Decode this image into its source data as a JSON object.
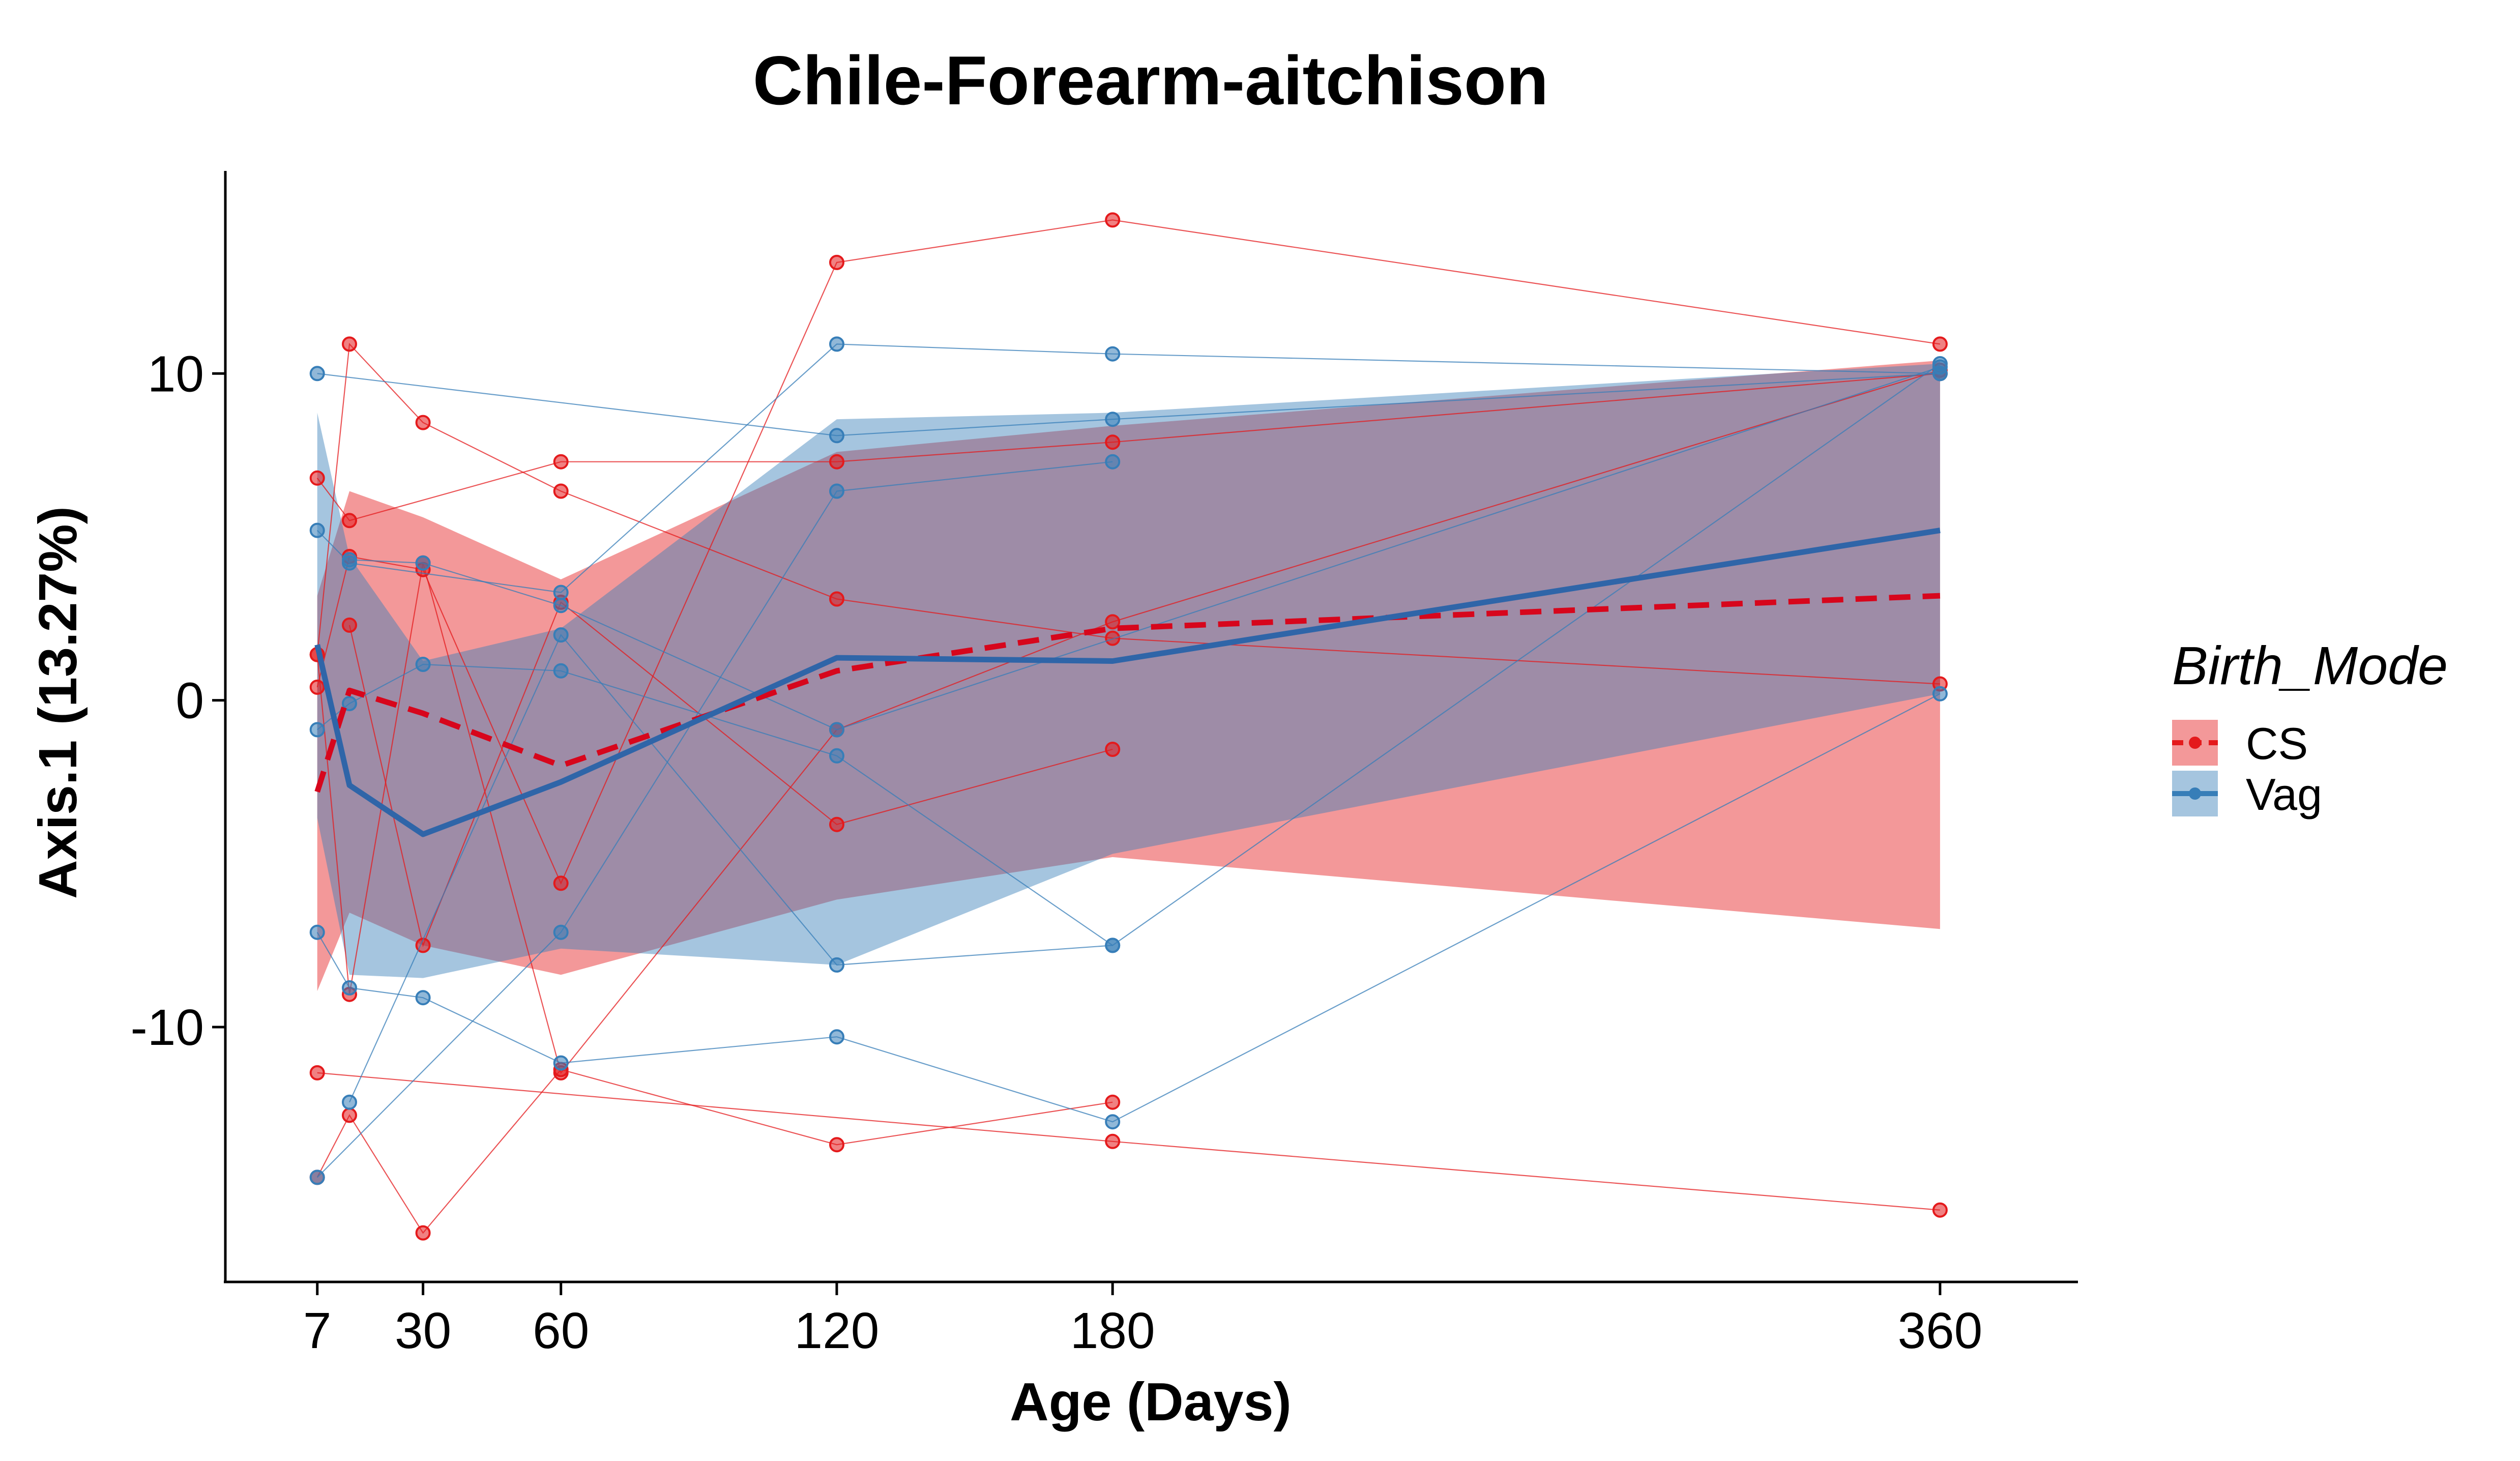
{
  "chart_data": {
    "type": "line",
    "title": "Chile-Forearm-aitchison",
    "xlabel": "Age (Days)",
    "ylabel": "Axis.1 (13.27%)",
    "xlim": [
      -13,
      390
    ],
    "ylim": [
      -17.8,
      16.2
    ],
    "x_ticks": [
      7,
      30,
      60,
      120,
      180,
      360
    ],
    "y_ticks": [
      -10,
      0,
      10
    ],
    "grid": false,
    "legend": {
      "title": "Birth_Mode",
      "position": "right",
      "entries": [
        {
          "label": "CS",
          "color": "#e41a1c"
        },
        {
          "label": "Vag",
          "color": "#377eb8"
        }
      ]
    },
    "series": [
      {
        "name": "CS",
        "color": "#e41a1c",
        "line_style": "dashed",
        "mean": [
          [
            7,
            -2.8
          ],
          [
            14,
            0.3
          ],
          [
            30,
            -0.4
          ],
          [
            60,
            -2.0
          ],
          [
            120,
            0.9
          ],
          [
            180,
            2.2
          ],
          [
            360,
            3.2
          ]
        ],
        "band_lower": [
          [
            7,
            -8.9
          ],
          [
            14,
            -6.5
          ],
          [
            30,
            -7.5
          ],
          [
            60,
            -8.4
          ],
          [
            120,
            -6.1
          ],
          [
            180,
            -4.8
          ],
          [
            360,
            -7.0
          ]
        ],
        "band_upper": [
          [
            7,
            3.2
          ],
          [
            14,
            6.4
          ],
          [
            30,
            5.6
          ],
          [
            60,
            3.7
          ],
          [
            120,
            7.6
          ],
          [
            180,
            8.4
          ],
          [
            360,
            10.4
          ]
        ],
        "subjects": [
          [
            [
              7,
              6.8
            ],
            [
              14,
              5.5
            ],
            [
              60,
              7.3
            ],
            [
              120,
              7.3
            ],
            [
              180,
              7.9
            ],
            [
              360,
              10.0
            ]
          ],
          [
            [
              7,
              1.4
            ],
            [
              14,
              10.9
            ],
            [
              30,
              8.5
            ],
            [
              60,
              6.4
            ],
            [
              120,
              3.1
            ],
            [
              180,
              1.9
            ],
            [
              360,
              0.5
            ]
          ],
          [
            [
              7,
              0.4
            ],
            [
              14,
              4.4
            ],
            [
              30,
              4.0
            ],
            [
              60,
              -5.6
            ],
            [
              120,
              13.4
            ],
            [
              180,
              14.7
            ],
            [
              360,
              10.9
            ]
          ],
          [
            [
              7,
              -11.4
            ],
            [
              180,
              -13.5
            ],
            [
              360,
              -15.6
            ]
          ],
          [
            [
              7,
              -14.6
            ],
            [
              14,
              -12.7
            ],
            [
              30,
              -16.3
            ],
            [
              60,
              -11.3
            ],
            [
              120,
              -13.6
            ],
            [
              180,
              -12.3
            ]
          ],
          [
            [
              7,
              1.4
            ],
            [
              14,
              -9.0
            ],
            [
              30,
              4.2
            ],
            [
              60,
              -11.4
            ],
            [
              120,
              -0.9
            ],
            [
              180,
              2.4
            ],
            [
              360,
              10.1
            ]
          ],
          [
            [
              14,
              2.3
            ],
            [
              30,
              -7.5
            ],
            [
              60,
              3.0
            ],
            [
              120,
              -3.8
            ],
            [
              180,
              -1.5
            ]
          ]
        ]
      },
      {
        "name": "Vag",
        "color": "#377eb8",
        "line_style": "solid",
        "mean": [
          [
            7,
            1.7
          ],
          [
            14,
            -2.6
          ],
          [
            30,
            -4.1
          ],
          [
            60,
            -2.5
          ],
          [
            120,
            1.3
          ],
          [
            180,
            1.2
          ],
          [
            360,
            5.2
          ]
        ],
        "band_lower": [
          [
            7,
            -3.6
          ],
          [
            14,
            -8.4
          ],
          [
            30,
            -8.5
          ],
          [
            60,
            -7.6
          ],
          [
            120,
            -8.1
          ],
          [
            180,
            -4.7
          ],
          [
            360,
            0.2
          ]
        ],
        "band_upper": [
          [
            7,
            8.8
          ],
          [
            14,
            4.4
          ],
          [
            30,
            1.2
          ],
          [
            60,
            2.2
          ],
          [
            120,
            8.6
          ],
          [
            180,
            8.8
          ],
          [
            360,
            10.3
          ]
        ],
        "subjects": [
          [
            [
              7,
              10.0
            ],
            [
              120,
              8.1
            ],
            [
              180,
              8.6
            ],
            [
              360,
              10.0
            ]
          ],
          [
            [
              7,
              5.2
            ],
            [
              14,
              4.2
            ],
            [
              60,
              3.3
            ],
            [
              120,
              10.9
            ],
            [
              180,
              10.6
            ],
            [
              360,
              10.0
            ]
          ],
          [
            [
              7,
              -0.9
            ],
            [
              14,
              -0.1
            ],
            [
              30,
              1.1
            ],
            [
              60,
              0.9
            ],
            [
              120,
              -1.7
            ],
            [
              180,
              -7.5
            ],
            [
              360,
              10.3
            ]
          ],
          [
            [
              7,
              -7.1
            ],
            [
              14,
              -8.8
            ],
            [
              30,
              -9.1
            ],
            [
              60,
              -11.1
            ],
            [
              120,
              -10.3
            ],
            [
              180,
              -12.9
            ],
            [
              360,
              0.2
            ]
          ],
          [
            [
              7,
              -14.6
            ],
            [
              60,
              -7.1
            ],
            [
              120,
              6.4
            ],
            [
              180,
              7.3
            ]
          ],
          [
            [
              14,
              -12.3
            ],
            [
              60,
              2.0
            ],
            [
              120,
              -8.1
            ],
            [
              180,
              -7.5
            ]
          ],
          [
            [
              14,
              4.3
            ],
            [
              30,
              4.2
            ],
            [
              60,
              2.9
            ],
            [
              120,
              -0.9
            ],
            [
              360,
              10.2
            ]
          ]
        ]
      }
    ]
  }
}
